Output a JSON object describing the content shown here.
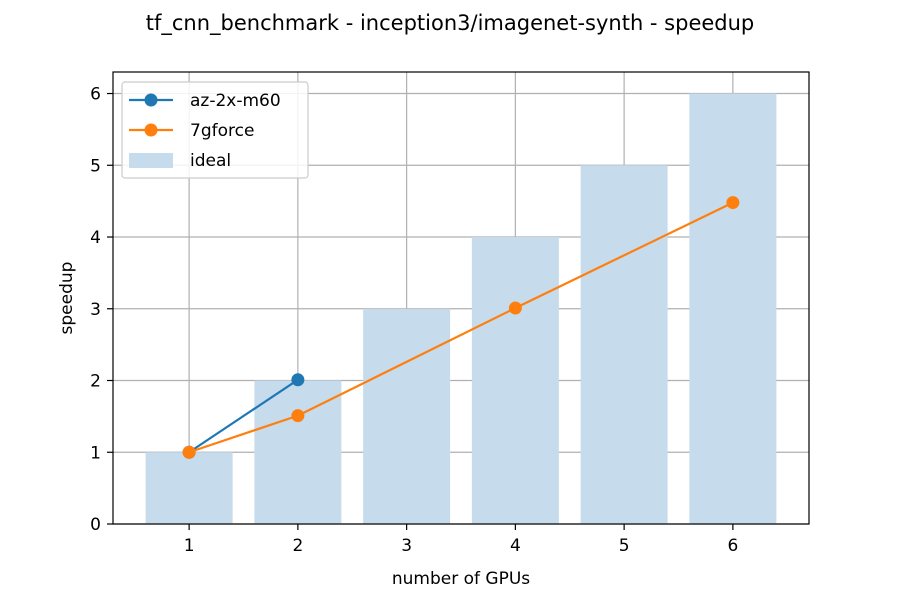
{
  "chart_data": {
    "type": "bar",
    "title": "tf_cnn_benchmark - inception3/imagenet-synth - speedup",
    "xlabel": "number of GPUs",
    "ylabel": "speedup",
    "categories": [
      1,
      2,
      3,
      4,
      5,
      6
    ],
    "xlim": [
      0.3,
      6.7
    ],
    "ylim": [
      0,
      6.3
    ],
    "yticks": [
      0,
      1,
      2,
      3,
      4,
      5,
      6
    ],
    "grid": true,
    "legend_position": "upper-left",
    "bars": {
      "name": "ideal",
      "color": "#c6dbec",
      "x": [
        1,
        2,
        3,
        4,
        5,
        6
      ],
      "values": [
        1,
        2,
        3,
        4,
        5,
        6
      ]
    },
    "series": [
      {
        "name": "az-2x-m60",
        "color": "#1f77b4",
        "x": [
          1,
          2
        ],
        "values": [
          1.0,
          2.01
        ]
      },
      {
        "name": "7gforce",
        "color": "#ff7f0e",
        "x": [
          1,
          2,
          4,
          6
        ],
        "values": [
          1.0,
          1.51,
          3.01,
          4.48
        ]
      }
    ]
  }
}
